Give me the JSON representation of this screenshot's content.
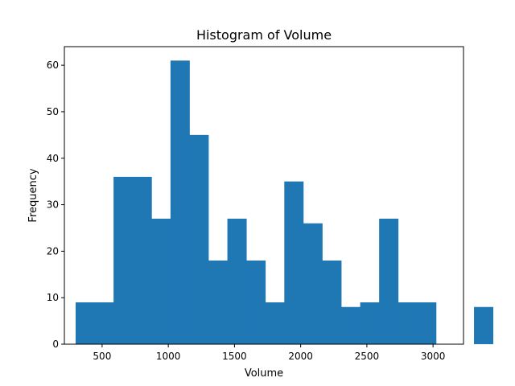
{
  "chart_data": {
    "type": "histogram",
    "title": "Histogram of Volume",
    "xlabel": "Volume",
    "ylabel": "Frequency",
    "xlim": [
      215,
      3230
    ],
    "ylim": [
      0,
      64
    ],
    "xticks": [
      500,
      1000,
      1500,
      2000,
      2500,
      3000
    ],
    "yticks": [
      0,
      10,
      20,
      30,
      40,
      50,
      60
    ],
    "bar_color": "#1f77b4",
    "bin_start": 300,
    "bin_width": 143.3,
    "bin_counts": [
      9,
      9,
      36,
      36,
      27,
      61,
      45,
      18,
      27,
      18,
      9,
      35,
      26,
      18,
      8,
      9,
      27,
      9,
      9,
      0,
      0,
      8
    ]
  }
}
